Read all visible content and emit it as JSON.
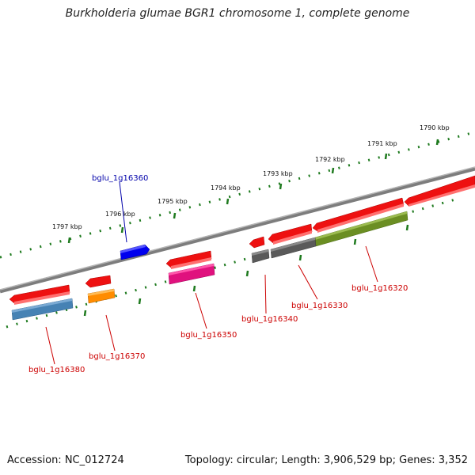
{
  "title": "Burkholderia glumae BGR1 chromosome 1, complete genome",
  "footer": {
    "accession": "Accession: NC_012724",
    "info": "Topology: circular; Length: 3,906,529 bp; Genes: 3,352"
  },
  "ruler": {
    "ticks": [
      {
        "label": "1790 kbp"
      },
      {
        "label": "1791 kbp"
      },
      {
        "label": "1792 kbp"
      },
      {
        "label": "1793 kbp"
      },
      {
        "label": "1794 kbp"
      },
      {
        "label": "1795 kbp"
      },
      {
        "label": "1796 kbp"
      },
      {
        "label": "1797 kbp"
      }
    ]
  },
  "genes": [
    {
      "id": "bglu_1g16320",
      "label": "bglu_1g16320",
      "strand": "reverse",
      "feature_color": "#6b8e23",
      "label_color": "#cc0000"
    },
    {
      "id": "bglu_1g16330",
      "label": "bglu_1g16330",
      "strand": "reverse",
      "feature_color": "#5a5a5a",
      "label_color": "#cc0000"
    },
    {
      "id": "bglu_1g16340",
      "label": "bglu_1g16340",
      "strand": "reverse",
      "feature_color": "#5a5a5a",
      "label_color": "#cc0000"
    },
    {
      "id": "bglu_1g16350",
      "label": "bglu_1g16350",
      "strand": "reverse",
      "feature_color": "#e0117e",
      "label_color": "#cc0000"
    },
    {
      "id": "bglu_1g16360",
      "label": "bglu_1g16360",
      "strand": "forward",
      "feature_color": "#0000ee",
      "label_color": "#0000aa"
    },
    {
      "id": "bglu_1g16370",
      "label": "bglu_1g16370",
      "strand": "reverse",
      "feature_color": "#ff8c00",
      "label_color": "#cc0000"
    },
    {
      "id": "bglu_1g16380",
      "label": "bglu_1g16380",
      "strand": "reverse",
      "feature_color": "#4682b4",
      "label_color": "#cc0000"
    }
  ],
  "colors": {
    "cds": "#ee1111",
    "backbone": "#8a8a8a",
    "ruler": "#1e7a1e"
  }
}
